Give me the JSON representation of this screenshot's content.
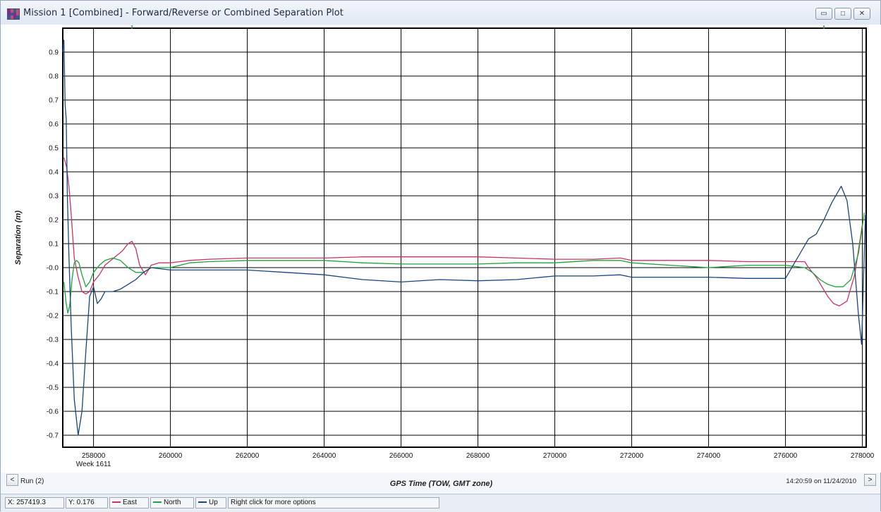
{
  "window": {
    "title": "Mission 1 [Combined] - Forward/Reverse or Combined Separation Plot",
    "icon": "grid-app-icon"
  },
  "controls": {
    "minimize_icon": "minimize-icon",
    "maximize_icon": "maximize-icon",
    "close_icon": "close-icon",
    "prev_label": "<",
    "next_label": ">"
  },
  "footer": {
    "run_label": "Run (2)",
    "timestamp": "14:20:59 on 11/24/2010"
  },
  "status": {
    "x_readout": "X: 257419.3",
    "y_readout": "Y: 0.176",
    "hint": "Right click for more options",
    "legend": [
      {
        "label": "East",
        "color": "#c8336a"
      },
      {
        "label": "North",
        "color": "#1ea33b"
      },
      {
        "label": "Up",
        "color": "#18467e"
      }
    ]
  },
  "chart_data": {
    "type": "line",
    "xlabel": "GPS Time (TOW, GMT zone)",
    "ylabel": "Separation (m)",
    "xlim": [
      257200,
      278100
    ],
    "ylim": [
      -0.75,
      1.0
    ],
    "x_ticks": [
      258000,
      260000,
      262000,
      264000,
      266000,
      268000,
      270000,
      272000,
      274000,
      276000,
      278000
    ],
    "y_ticks": [
      0.9,
      0.8,
      0.7,
      0.6,
      0.5,
      0.4,
      0.3,
      0.2,
      0.1,
      0.0,
      -0.1,
      -0.2,
      -0.3,
      -0.4,
      -0.5,
      -0.6,
      -0.7
    ],
    "y_tick_labels": [
      "0.9",
      "0.8",
      "0.7",
      "0.6",
      "0.5",
      "0.4",
      "0.3",
      "0.2",
      "0.1",
      "-0.0",
      "-0.1",
      "-0.2",
      "-0.3",
      "-0.4",
      "-0.5",
      "-0.6",
      "-0.7"
    ],
    "x_sub_label": "Week 1611",
    "grid": true,
    "series": [
      {
        "name": "East",
        "color": "#c8336a",
        "x": [
          257230,
          257300,
          257360,
          257420,
          257500,
          257600,
          257700,
          257800,
          257900,
          258000,
          258150,
          258300,
          258450,
          258600,
          258750,
          258900,
          259000,
          259100,
          259200,
          259350,
          259500,
          259700,
          260000,
          260500,
          261000,
          262000,
          263000,
          264000,
          265000,
          266000,
          267000,
          268000,
          269000,
          270000,
          271000,
          271700,
          272000,
          273000,
          274000,
          275000,
          276000,
          276500,
          276600,
          276800,
          276950,
          277100,
          277250,
          277400,
          277600,
          277800,
          278000
        ],
        "y": [
          0.46,
          0.42,
          0.34,
          0.22,
          0.04,
          -0.04,
          -0.1,
          -0.11,
          -0.1,
          -0.06,
          -0.03,
          0.01,
          0.03,
          0.05,
          0.07,
          0.1,
          0.11,
          0.08,
          0.01,
          -0.03,
          0.01,
          0.02,
          0.02,
          0.03,
          0.035,
          0.04,
          0.04,
          0.04,
          0.045,
          0.045,
          0.045,
          0.045,
          0.04,
          0.035,
          0.035,
          0.04,
          0.03,
          0.03,
          0.03,
          0.025,
          0.025,
          0.025,
          0.0,
          -0.04,
          -0.08,
          -0.12,
          -0.15,
          -0.16,
          -0.14,
          -0.03,
          0.18
        ]
      },
      {
        "name": "North",
        "color": "#1ea33b",
        "x": [
          257230,
          257280,
          257330,
          257380,
          257440,
          257500,
          257560,
          257620,
          257700,
          257800,
          257900,
          258000,
          258150,
          258300,
          258500,
          258700,
          258900,
          259100,
          259300,
          259500,
          259700,
          260000,
          260500,
          261000,
          262000,
          263000,
          264000,
          265000,
          266000,
          267000,
          268000,
          269000,
          270000,
          271000,
          271700,
          272000,
          273000,
          274000,
          275000,
          276000,
          276500,
          276700,
          276900,
          277100,
          277300,
          277500,
          277700,
          277900,
          278050
        ],
        "y": [
          -0.06,
          -0.14,
          -0.19,
          -0.16,
          -0.05,
          0.02,
          0.03,
          0.02,
          -0.03,
          -0.08,
          -0.06,
          -0.02,
          0.01,
          0.03,
          0.04,
          0.03,
          0.0,
          -0.02,
          -0.02,
          0.0,
          0.0,
          0.0,
          0.02,
          0.025,
          0.03,
          0.03,
          0.03,
          0.02,
          0.015,
          0.015,
          0.015,
          0.02,
          0.02,
          0.03,
          0.03,
          0.02,
          0.01,
          0.0,
          0.01,
          0.01,
          0.0,
          -0.02,
          -0.05,
          -0.07,
          -0.08,
          -0.08,
          -0.05,
          0.06,
          0.23
        ]
      },
      {
        "name": "Up",
        "color": "#18467e",
        "x": [
          257200,
          257230,
          257260,
          257290,
          257320,
          257360,
          257420,
          257500,
          257600,
          257700,
          257800,
          257900,
          258000,
          258100,
          258200,
          258300,
          258500,
          258700,
          258900,
          259100,
          259300,
          259500,
          260000,
          260500,
          261000,
          262000,
          263000,
          264000,
          265000,
          266000,
          267000,
          268000,
          269000,
          270000,
          271000,
          271700,
          272000,
          273000,
          274000,
          275000,
          276000,
          276600,
          276800,
          277000,
          277200,
          277450,
          277600,
          277750,
          277900,
          277980,
          278080
        ],
        "y": [
          0.9,
          0.95,
          0.68,
          0.62,
          0.3,
          0.05,
          -0.25,
          -0.55,
          -0.7,
          -0.6,
          -0.35,
          -0.12,
          -0.08,
          -0.15,
          -0.13,
          -0.1,
          -0.1,
          -0.09,
          -0.07,
          -0.05,
          -0.02,
          0.0,
          -0.01,
          -0.01,
          -0.01,
          -0.01,
          -0.02,
          -0.03,
          -0.05,
          -0.06,
          -0.05,
          -0.055,
          -0.05,
          -0.035,
          -0.035,
          -0.03,
          -0.04,
          -0.04,
          -0.04,
          -0.045,
          -0.045,
          0.12,
          0.14,
          0.2,
          0.27,
          0.34,
          0.28,
          0.1,
          -0.2,
          -0.32,
          0.22
        ]
      }
    ]
  }
}
